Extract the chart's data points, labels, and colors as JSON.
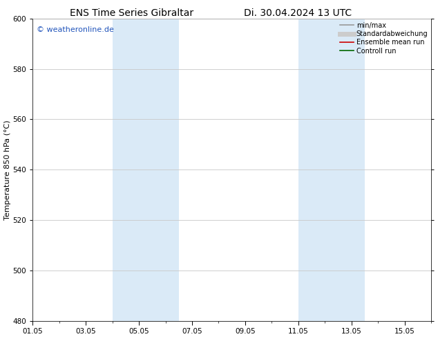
{
  "title_left": "ENS Time Series Gibraltar",
  "title_right": "Di. 30.04.2024 13 UTC",
  "ylabel": "Temperature 850 hPa (°C)",
  "watermark": "© weatheronline.de",
  "ylim": [
    480,
    600
  ],
  "yticks": [
    480,
    500,
    520,
    540,
    560,
    580,
    600
  ],
  "xlim": [
    0,
    15
  ],
  "xtick_labels": [
    "01.05",
    "03.05",
    "05.05",
    "07.05",
    "09.05",
    "11.05",
    "13.05",
    "15.05"
  ],
  "xtick_positions_days": [
    0,
    2,
    4,
    6,
    8,
    10,
    12,
    14
  ],
  "shade_bands": [
    {
      "start_day": 3.0,
      "end_day": 5.5
    },
    {
      "start_day": 10.0,
      "end_day": 12.5
    }
  ],
  "shade_color": "#daeaf7",
  "background_color": "#ffffff",
  "plot_bg_color": "#ffffff",
  "grid_color": "#c8c8c8",
  "legend_items": [
    {
      "label": "min/max",
      "color": "#999999",
      "lw": 1.2,
      "style": "-"
    },
    {
      "label": "Standardabweichung",
      "color": "#cccccc",
      "lw": 5,
      "style": "-"
    },
    {
      "label": "Ensemble mean run",
      "color": "#cc0000",
      "lw": 1.2,
      "style": "-"
    },
    {
      "label": "Controll run",
      "color": "#006600",
      "lw": 1.2,
      "style": "-"
    }
  ],
  "watermark_color": "#2255bb",
  "title_fontsize": 10,
  "label_fontsize": 8,
  "tick_fontsize": 7.5,
  "legend_fontsize": 7,
  "watermark_fontsize": 8
}
